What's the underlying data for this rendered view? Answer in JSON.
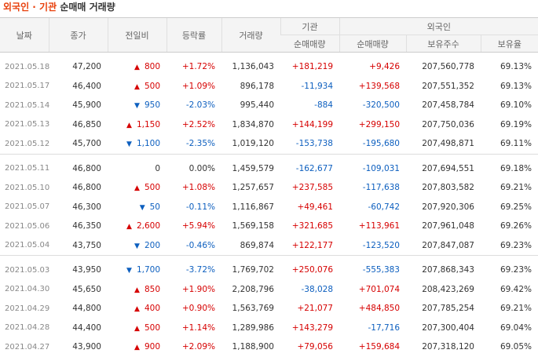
{
  "title": {
    "highlight": "외국인 · 기관",
    "rest": "순매매 거래량"
  },
  "headers": {
    "date": "날짜",
    "close": "종가",
    "change": "전일비",
    "rate": "등락률",
    "volume": "거래량",
    "inst_group": "기관",
    "foreign_group": "외국인",
    "inst_net": "순매매량",
    "foreign_net": "순매매량",
    "foreign_hold": "보유주수",
    "foreign_ratio": "보유율"
  },
  "colors": {
    "up": "#d60000",
    "down": "#0d5fbf",
    "title_accent": "#e8400c"
  },
  "groups": [
    [
      {
        "date": "2021.05.18",
        "close": "47,200",
        "dir": "up",
        "change": "800",
        "rate": "+1.72%",
        "volume": "1,136,043",
        "inst": "+181,219",
        "foreign": "+9,426",
        "hold": "207,560,778",
        "ratio": "69.13%"
      },
      {
        "date": "2021.05.17",
        "close": "46,400",
        "dir": "up",
        "change": "500",
        "rate": "+1.09%",
        "volume": "896,178",
        "inst": "-11,934",
        "foreign": "+139,568",
        "hold": "207,551,352",
        "ratio": "69.13%"
      },
      {
        "date": "2021.05.14",
        "close": "45,900",
        "dir": "down",
        "change": "950",
        "rate": "-2.03%",
        "volume": "995,440",
        "inst": "-884",
        "foreign": "-320,500",
        "hold": "207,458,784",
        "ratio": "69.10%"
      },
      {
        "date": "2021.05.13",
        "close": "46,850",
        "dir": "up",
        "change": "1,150",
        "rate": "+2.52%",
        "volume": "1,834,870",
        "inst": "+144,199",
        "foreign": "+299,150",
        "hold": "207,750,036",
        "ratio": "69.19%"
      },
      {
        "date": "2021.05.12",
        "close": "45,700",
        "dir": "down",
        "change": "1,100",
        "rate": "-2.35%",
        "volume": "1,019,120",
        "inst": "-153,738",
        "foreign": "-195,680",
        "hold": "207,498,871",
        "ratio": "69.11%"
      }
    ],
    [
      {
        "date": "2021.05.11",
        "close": "46,800",
        "dir": "none",
        "change": "0",
        "rate": "0.00%",
        "volume": "1,459,579",
        "inst": "-162,677",
        "foreign": "-109,031",
        "hold": "207,694,551",
        "ratio": "69.18%"
      },
      {
        "date": "2021.05.10",
        "close": "46,800",
        "dir": "up",
        "change": "500",
        "rate": "+1.08%",
        "volume": "1,257,657",
        "inst": "+237,585",
        "foreign": "-117,638",
        "hold": "207,803,582",
        "ratio": "69.21%"
      },
      {
        "date": "2021.05.07",
        "close": "46,300",
        "dir": "down",
        "change": "50",
        "rate": "-0.11%",
        "volume": "1,116,867",
        "inst": "+49,461",
        "foreign": "-60,742",
        "hold": "207,920,306",
        "ratio": "69.25%"
      },
      {
        "date": "2021.05.06",
        "close": "46,350",
        "dir": "up",
        "change": "2,600",
        "rate": "+5.94%",
        "volume": "1,569,158",
        "inst": "+321,685",
        "foreign": "+113,961",
        "hold": "207,961,048",
        "ratio": "69.26%"
      },
      {
        "date": "2021.05.04",
        "close": "43,750",
        "dir": "down",
        "change": "200",
        "rate": "-0.46%",
        "volume": "869,874",
        "inst": "+122,177",
        "foreign": "-123,520",
        "hold": "207,847,087",
        "ratio": "69.23%"
      }
    ],
    [
      {
        "date": "2021.05.03",
        "close": "43,950",
        "dir": "down",
        "change": "1,700",
        "rate": "-3.72%",
        "volume": "1,769,702",
        "inst": "+250,076",
        "foreign": "-555,383",
        "hold": "207,868,343",
        "ratio": "69.23%"
      },
      {
        "date": "2021.04.30",
        "close": "45,650",
        "dir": "up",
        "change": "850",
        "rate": "+1.90%",
        "volume": "2,208,796",
        "inst": "-38,028",
        "foreign": "+701,074",
        "hold": "208,423,269",
        "ratio": "69.42%"
      },
      {
        "date": "2021.04.29",
        "close": "44,800",
        "dir": "up",
        "change": "400",
        "rate": "+0.90%",
        "volume": "1,563,769",
        "inst": "+21,077",
        "foreign": "+484,850",
        "hold": "207,785,254",
        "ratio": "69.21%"
      },
      {
        "date": "2021.04.28",
        "close": "44,400",
        "dir": "up",
        "change": "500",
        "rate": "+1.14%",
        "volume": "1,289,986",
        "inst": "+143,279",
        "foreign": "-17,716",
        "hold": "207,300,404",
        "ratio": "69.04%"
      },
      {
        "date": "2021.04.27",
        "close": "43,900",
        "dir": "up",
        "change": "900",
        "rate": "+2.09%",
        "volume": "1,188,900",
        "inst": "+79,056",
        "foreign": "+159,684",
        "hold": "207,318,120",
        "ratio": "69.05%"
      }
    ]
  ]
}
